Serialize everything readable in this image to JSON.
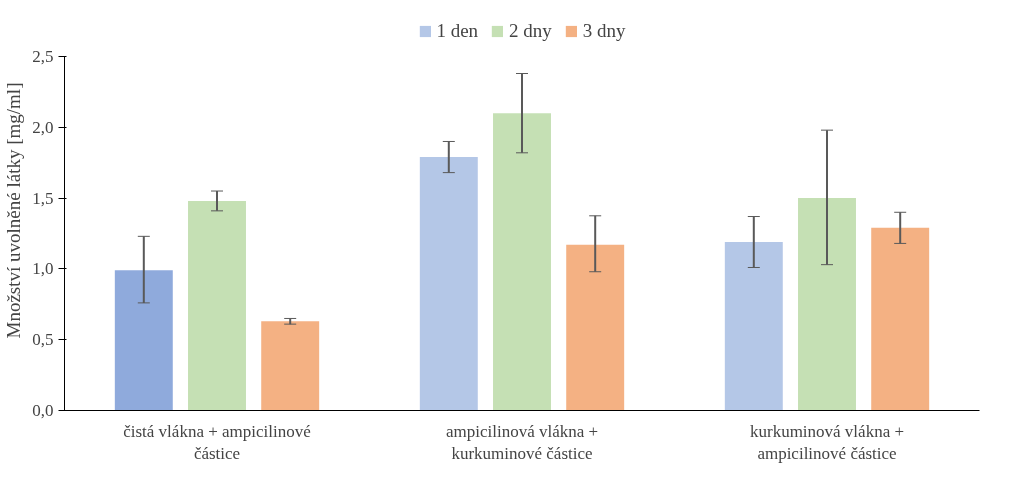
{
  "chart_data": {
    "type": "bar",
    "ylabel": "Množství uvolněné látky [mg/ml]",
    "categories": [
      "čistá vlákna + ampicilinové částice",
      "ampicilinová vlákna + kurkuminové částice",
      "kurkuminová vlákna + ampicilinové částice"
    ],
    "series": [
      {
        "name": "1 den",
        "color": "#b4c7e7",
        "colors": [
          "#8faadc",
          "#b4c7e7",
          "#b4c7e7"
        ],
        "values": [
          0.99,
          1.79,
          1.19
        ],
        "errors": [
          [
            0.76,
            1.23
          ],
          [
            1.68,
            1.9
          ],
          [
            1.01,
            1.37
          ]
        ]
      },
      {
        "name": "2 dny",
        "color": "#c5e0b4",
        "colors": [
          "#c5e0b4",
          "#c5e0b4",
          "#c5e0b4"
        ],
        "values": [
          1.48,
          2.1,
          1.5
        ],
        "errors": [
          [
            1.41,
            1.55
          ],
          [
            1.82,
            2.38
          ],
          [
            1.03,
            1.98
          ]
        ]
      },
      {
        "name": "3 dny",
        "color": "#f4b183",
        "colors": [
          "#f4b183",
          "#f4b183",
          "#f4b183"
        ],
        "values": [
          0.63,
          1.17,
          1.29
        ],
        "errors": [
          [
            0.61,
            0.65
          ],
          [
            0.98,
            1.375
          ],
          [
            1.18,
            1.4
          ]
        ]
      }
    ],
    "ylim": [
      0,
      2.5
    ],
    "yticks": [
      {
        "value": 0,
        "label": "0,0"
      },
      {
        "value": 0.5,
        "label": "0,5"
      },
      {
        "value": 1,
        "label": "1,0"
      },
      {
        "value": 1.5,
        "label": "1,5"
      },
      {
        "value": 2,
        "label": "2,0"
      },
      {
        "value": 2.5,
        "label": "2,5"
      }
    ],
    "legend": "top",
    "grid": false
  }
}
